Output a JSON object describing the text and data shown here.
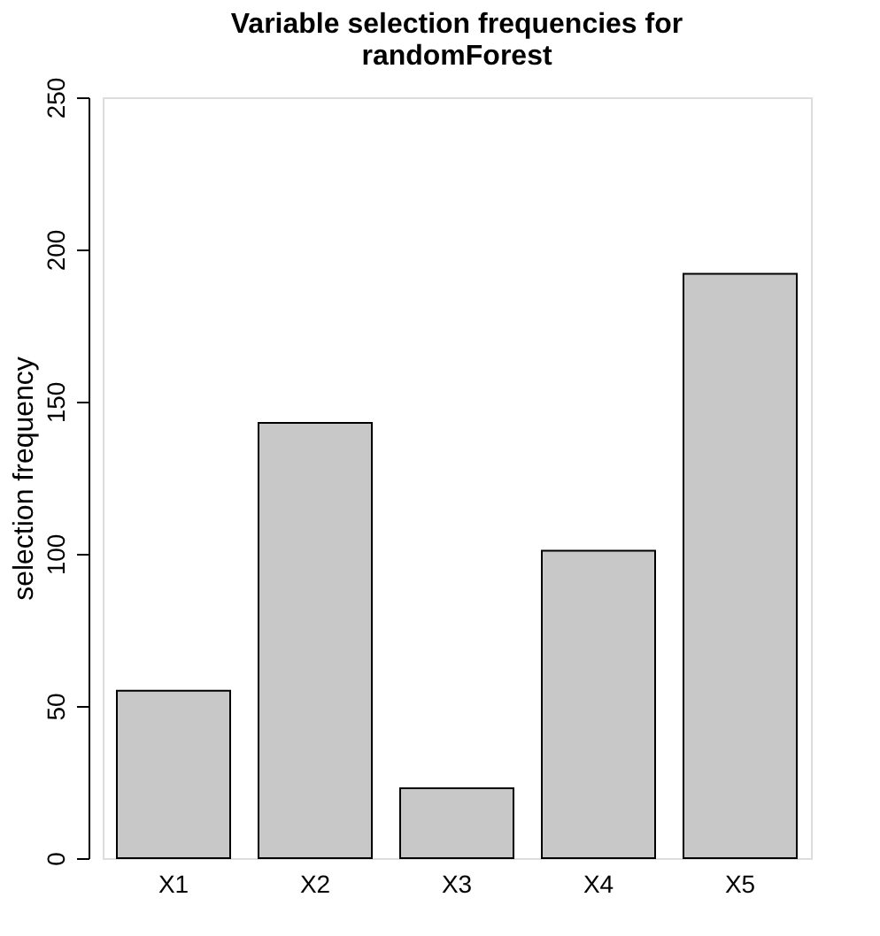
{
  "chart_data": {
    "type": "bar",
    "title": "Variable selection frequencies for randomForest",
    "ylabel": "selection frequency",
    "categories": [
      "X1",
      "X2",
      "X3",
      "X4",
      "X5"
    ],
    "values": [
      55,
      143,
      23,
      101,
      192
    ],
    "color": "#c8c8c8",
    "ylim": [
      0,
      250
    ],
    "yticks": [
      0,
      50,
      100,
      150,
      200,
      250
    ],
    "grid": false
  }
}
